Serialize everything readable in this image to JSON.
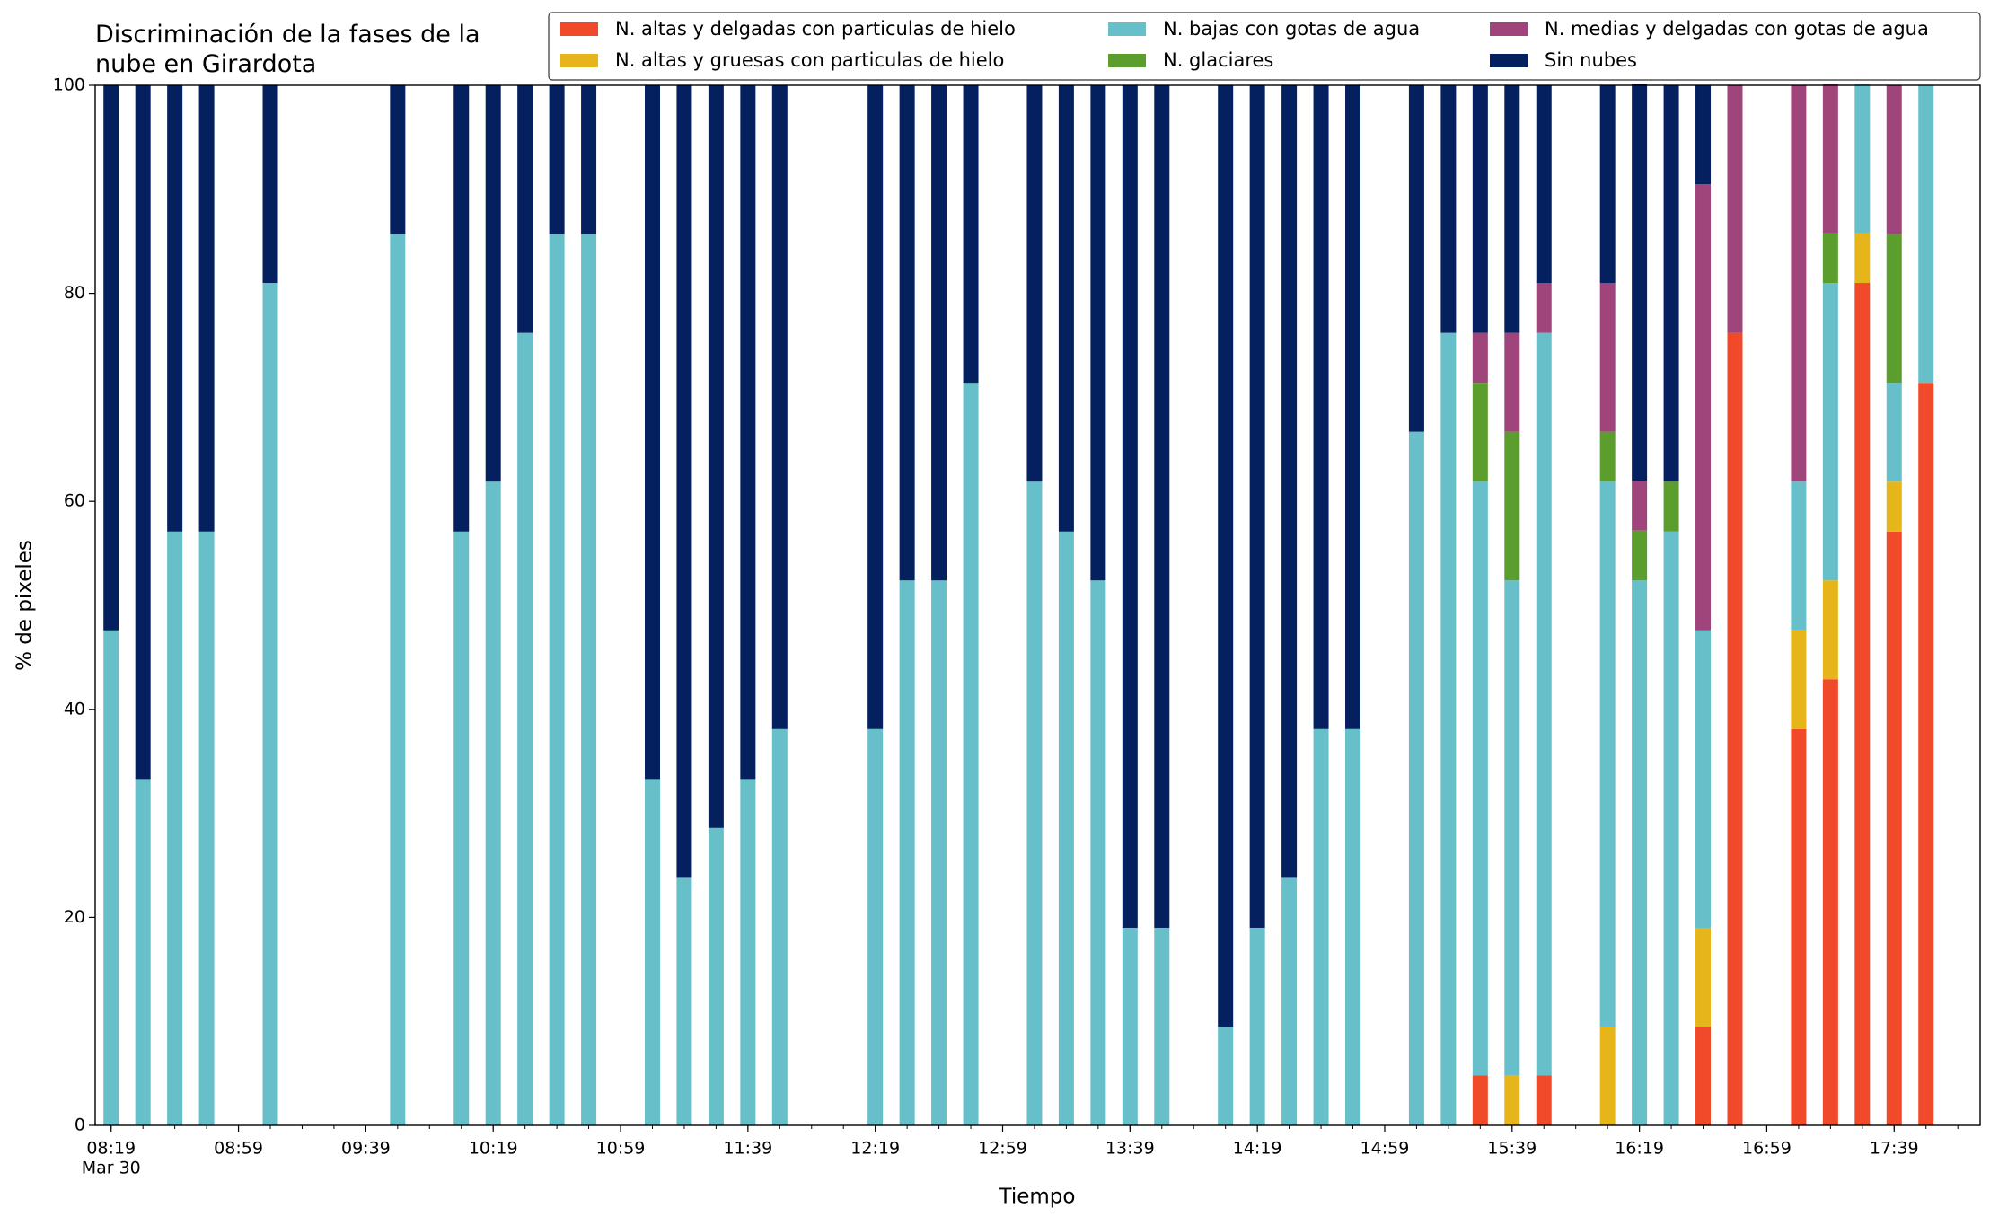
{
  "chart_data": {
    "type": "stacked_bar",
    "title": "Discriminación de la fases de la nube en Girardota",
    "xlabel": "Tiempo",
    "ylabel": "% de pixeles",
    "date_label": "Mar 30",
    "x": [
      "08:19",
      "08:29",
      "08:39",
      "08:49",
      "09:09",
      "09:49",
      "10:09",
      "10:19",
      "10:29",
      "10:39",
      "10:49",
      "11:09",
      "11:19",
      "11:29",
      "11:39",
      "11:49",
      "12:19",
      "12:29",
      "12:39",
      "12:49",
      "13:09",
      "13:19",
      "13:29",
      "13:39",
      "13:49",
      "14:09",
      "14:19",
      "14:29",
      "14:39",
      "14:49",
      "15:09",
      "15:19",
      "15:29",
      "15:39",
      "15:49",
      "16:09",
      "16:19",
      "16:29",
      "16:39",
      "16:49",
      "17:09",
      "17:19",
      "17:29",
      "17:39",
      "17:49"
    ],
    "xlim": [
      "08:14",
      "18:06"
    ],
    "xticks": [
      "08:19",
      "08:59",
      "09:39",
      "10:19",
      "10:59",
      "11:39",
      "12:19",
      "12:59",
      "13:39",
      "14:19",
      "14:59",
      "15:39",
      "16:19",
      "16:59",
      "17:39"
    ],
    "ylim": [
      0,
      100
    ],
    "yticks": [
      0,
      20,
      40,
      60,
      80,
      100
    ],
    "legend": "top-right",
    "series": [
      {
        "name": "N. altas y delgadas con particulas de hielo",
        "color": "#f04a2a",
        "values": [
          0,
          0,
          0,
          0,
          0,
          0,
          0,
          0,
          0,
          0,
          0,
          0,
          0,
          0,
          0,
          0,
          0,
          0,
          0,
          0,
          0,
          0,
          0,
          0,
          0,
          0,
          0,
          0,
          0,
          0,
          0,
          0,
          4.8,
          0,
          4.8,
          0,
          0,
          0,
          9.5,
          76.2,
          38.1,
          42.9,
          81.0,
          57.1,
          71.4
        ]
      },
      {
        "name": "N. altas y gruesas con particulas de hielo",
        "color": "#e5b51a",
        "values": [
          0,
          0,
          0,
          0,
          0,
          0,
          0,
          0,
          0,
          0,
          0,
          0,
          0,
          0,
          0,
          0,
          0,
          0,
          0,
          0,
          0,
          0,
          0,
          0,
          0,
          0,
          0,
          0,
          0,
          0,
          0,
          0,
          0,
          4.8,
          0,
          9.5,
          0,
          0,
          9.5,
          0,
          9.5,
          9.5,
          4.8,
          4.8,
          0
        ]
      },
      {
        "name": "N. bajas con gotas de agua",
        "color": "#67bfca",
        "values": [
          47.6,
          33.3,
          57.1,
          57.1,
          81.0,
          85.7,
          57.1,
          61.9,
          76.2,
          85.7,
          85.7,
          33.3,
          23.8,
          28.6,
          33.3,
          38.1,
          38.1,
          52.4,
          52.4,
          71.4,
          61.9,
          57.1,
          52.4,
          19.0,
          19.0,
          9.5,
          19.0,
          23.8,
          38.1,
          38.1,
          66.7,
          76.2,
          57.1,
          47.6,
          71.4,
          52.4,
          52.4,
          57.1,
          28.6,
          0,
          14.3,
          28.6,
          14.3,
          9.5,
          28.6
        ]
      },
      {
        "name": "N. glaciares",
        "color": "#5c9e2e",
        "values": [
          0,
          0,
          0,
          0,
          0,
          0,
          0,
          0,
          0,
          0,
          0,
          0,
          0,
          0,
          0,
          0,
          0,
          0,
          0,
          0,
          0,
          0,
          0,
          0,
          0,
          0,
          0,
          0,
          0,
          0,
          0,
          0,
          9.5,
          14.3,
          0,
          4.8,
          4.8,
          4.8,
          0,
          0,
          0,
          4.8,
          0,
          14.3,
          0
        ]
      },
      {
        "name": "N. medias y delgadas con gotas de agua",
        "color": "#a0457c",
        "values": [
          0,
          0,
          0,
          0,
          0,
          0,
          0,
          0,
          0,
          0,
          0,
          0,
          0,
          0,
          0,
          0,
          0,
          0,
          0,
          0,
          0,
          0,
          0,
          0,
          0,
          0,
          0,
          0,
          0,
          0,
          0,
          0,
          4.8,
          9.5,
          4.8,
          14.3,
          4.8,
          0,
          42.9,
          23.8,
          38.1,
          14.3,
          0,
          14.3,
          0
        ]
      },
      {
        "name": "Sin nubes",
        "color": "#05205e",
        "values": [
          52.4,
          66.7,
          42.9,
          42.9,
          19.0,
          14.3,
          42.9,
          38.1,
          23.8,
          14.3,
          14.3,
          66.7,
          76.2,
          71.4,
          66.7,
          61.9,
          61.9,
          47.6,
          47.6,
          28.6,
          38.1,
          42.9,
          47.6,
          81.0,
          81.0,
          90.5,
          81.0,
          76.2,
          61.9,
          61.9,
          33.3,
          23.8,
          23.8,
          23.8,
          19.0,
          19.0,
          38.1,
          38.1,
          9.5,
          0,
          0,
          0,
          0,
          0,
          0
        ]
      }
    ]
  }
}
